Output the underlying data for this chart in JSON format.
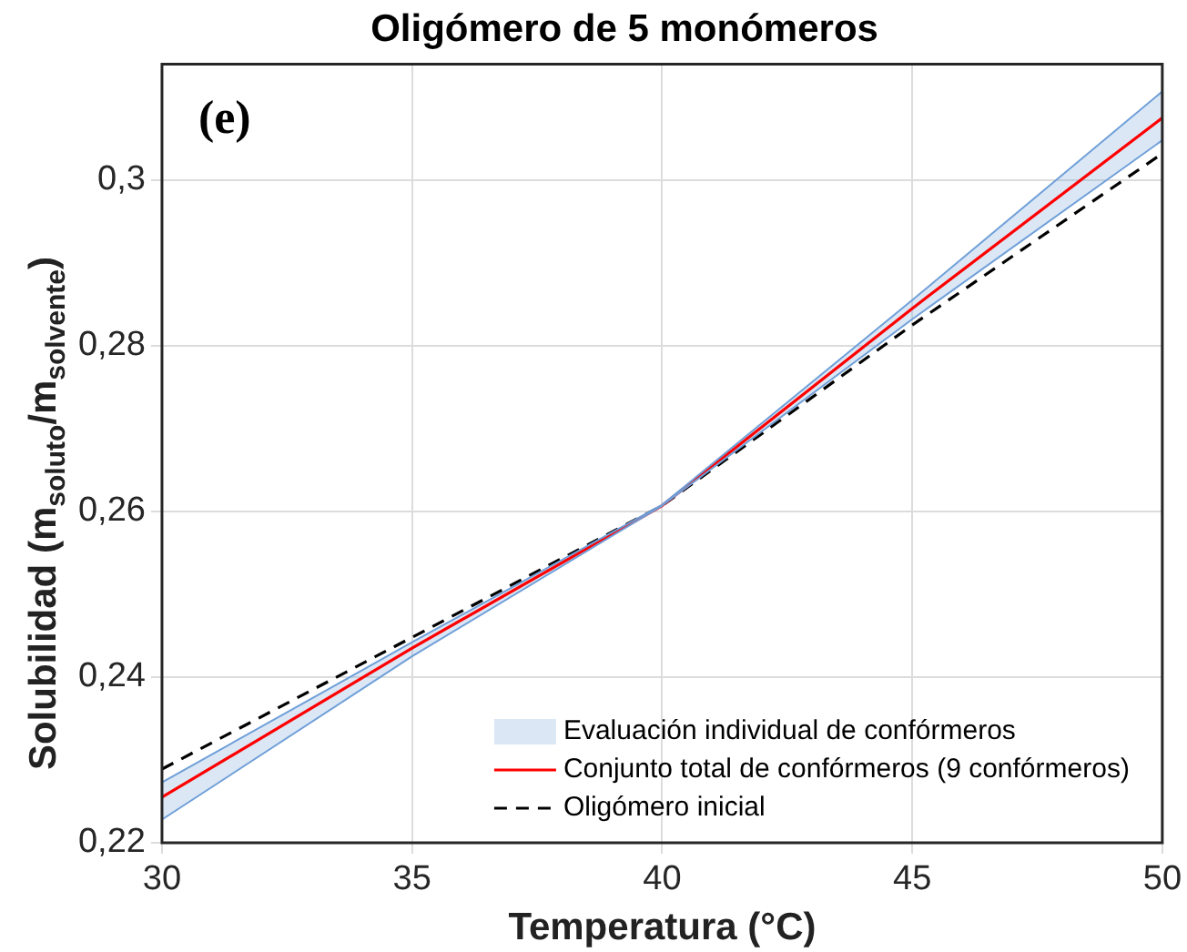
{
  "chart_data": {
    "type": "line",
    "title": "Oligómero de 5 monómeros",
    "xlabel": "Temperatura (°C)",
    "ylabel": "Solubilidad (m$_{soluto}$/m$_{solvente}$)",
    "annotations": [
      "(e)"
    ],
    "x": [
      30,
      35,
      40,
      45,
      50
    ],
    "series": [
      {
        "name": "Evaluación individual de confórmeros",
        "type": "area",
        "color": "#6f9fd8",
        "values": [
          null,
          null,
          null,
          null,
          null
        ],
        "lower": [
          0.2228,
          0.2425,
          0.2607,
          0.2832,
          0.3048
        ],
        "upper": [
          0.2273,
          0.2442,
          0.2608,
          0.2855,
          0.3107
        ]
      },
      {
        "color": "#6f9fd8",
        "values": [
          0.2228,
          0.2425,
          0.2607,
          0.2832,
          0.3048
        ]
      },
      {
        "color": "#6f9fd8",
        "values": [
          0.2273,
          0.2442,
          0.2608,
          0.2855,
          0.3107
        ]
      },
      {
        "name": "Conjunto total de confórmeros (9 confórmeros)",
        "color": "#ff0000",
        "values": [
          0.2255,
          0.2435,
          0.2607,
          0.2845,
          0.3075
        ]
      },
      {
        "name": "Oligómero inicial",
        "color": "#000000",
        "line_style": "dashed",
        "values": [
          0.2289,
          0.2448,
          0.2607,
          0.2825,
          0.3032
        ]
      }
    ],
    "xlim": [
      30,
      50
    ],
    "xticks": [
      30,
      35,
      40,
      45,
      50
    ],
    "ylim": [
      0.22,
      0.314
    ],
    "yticks": [
      {
        "value": 0.22,
        "label": "0,22"
      },
      {
        "value": 0.24,
        "label": "0,24"
      },
      {
        "value": 0.26,
        "label": "0,26"
      },
      {
        "value": 0.28,
        "label": "0,28"
      },
      {
        "value": 0.3,
        "label": "0,3"
      }
    ],
    "grid": true,
    "legend": "bottom right",
    "marker": "none"
  }
}
